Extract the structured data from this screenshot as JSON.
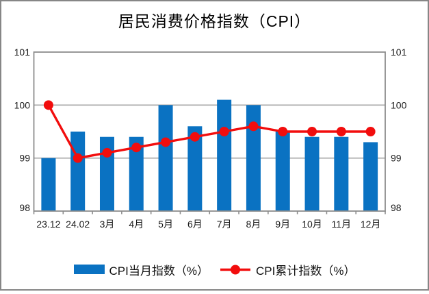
{
  "window": {
    "background": "#ffffff",
    "frame_border_color": "#868686"
  },
  "chart_data": {
    "type": "bar+line",
    "title": "居民消费价格指数（CPI）",
    "categories": [
      "23.12",
      "24.02",
      "3月",
      "4月",
      "5月",
      "6月",
      "7月",
      "8月",
      "9月",
      "10月",
      "11月",
      "12月"
    ],
    "series": [
      {
        "name": "CPI当月指数（%）",
        "type": "bar",
        "color": "#0a72c2",
        "values": [
          99,
          99.5,
          99.4,
          99.4,
          100,
          99.6,
          100.1,
          100,
          99.5,
          99.4,
          99.4,
          99.3
        ]
      },
      {
        "name": "CPI累计指数（%）",
        "type": "line",
        "color": "#f20d0d",
        "values": [
          100,
          99,
          99.1,
          99.2,
          99.3,
          99.4,
          99.5,
          99.6,
          99.5,
          99.5,
          99.5,
          99.5
        ]
      }
    ],
    "ylim": [
      98,
      101
    ],
    "yticks": [
      98,
      99,
      100,
      101
    ],
    "y_axis_sides": "both",
    "grid": "horizontal",
    "legend_position": "bottom",
    "axis_color": "#8c8c8c",
    "grid_color": "#a6a6a6",
    "tick_label_color": "#1a1a1a",
    "tick_label_size": 14
  }
}
